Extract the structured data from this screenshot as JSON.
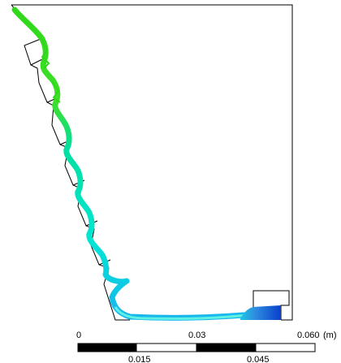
{
  "scale_bar": {
    "top_labels": [
      {
        "value": "0"
      },
      {
        "value": "0.03"
      },
      {
        "value": "0.060"
      },
      {
        "value": "(m)"
      }
    ],
    "bottom_labels": [
      {
        "value": "0.015"
      },
      {
        "value": "0.045"
      }
    ]
  },
  "colors": {
    "outline": "#000000",
    "jet_top": "#2fd81a",
    "jet_mid": "#00e0c8",
    "jet_bottom": "#18b6ee",
    "pool_light": "#2e8fe0",
    "pool_dark": "#0a3fcc"
  }
}
